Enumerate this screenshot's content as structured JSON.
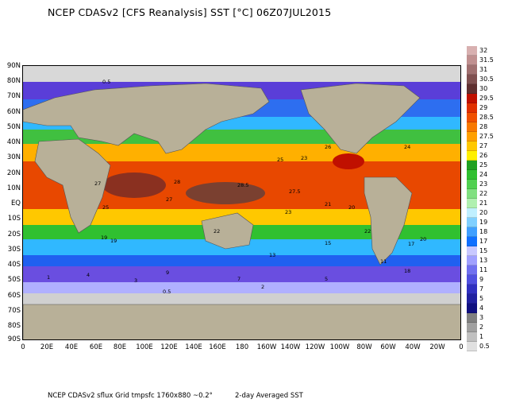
{
  "header": {
    "title": "NCEP CDASv2 [CFS Reanalysis] SST [°C] 06Z07JUL2015"
  },
  "axes": {
    "lat_labels": [
      "90N",
      "80N",
      "70N",
      "60N",
      "50N",
      "40N",
      "30N",
      "20N",
      "10N",
      "EQ",
      "10S",
      "20S",
      "30S",
      "40S",
      "50S",
      "60S",
      "70S",
      "80S",
      "90S"
    ],
    "lon_labels": [
      "0",
      "20E",
      "40E",
      "60E",
      "80E",
      "100E",
      "120E",
      "140E",
      "160E",
      "180",
      "160W",
      "140W",
      "120W",
      "100W",
      "80W",
      "60W",
      "40W",
      "20W",
      "0"
    ]
  },
  "colorbar": {
    "labels": [
      "32",
      "31.5",
      "31",
      "30.5",
      "30",
      "29.5",
      "29",
      "28.5",
      "28",
      "27.5",
      "27",
      "26",
      "25",
      "24",
      "23",
      "22",
      "21",
      "20",
      "19",
      "18",
      "17",
      "15",
      "13",
      "11",
      "9",
      "7",
      "5",
      "4",
      "3",
      "2",
      "1",
      "0.5"
    ],
    "colors": [
      "#d8b0b0",
      "#c09090",
      "#a07070",
      "#805050",
      "#603030",
      "#c01000",
      "#e03000",
      "#f05000",
      "#f87800",
      "#ffa000",
      "#ffc800",
      "#fff000",
      "#20a020",
      "#30c030",
      "#50d050",
      "#80e080",
      "#b0f0b0",
      "#c0f0ff",
      "#80d0ff",
      "#40a0ff",
      "#1070ff",
      "#c8c8ff",
      "#a0a0ff",
      "#7070f0",
      "#5050e0",
      "#3030c0",
      "#2020a0",
      "#101080",
      "#808080",
      "#a0a0a0",
      "#c0c0c0",
      "#e0e0e0"
    ]
  },
  "sst_labels": [
    "0.5",
    "25",
    "27",
    "26",
    "23",
    "24",
    "22",
    "21",
    "19",
    "20",
    "28.5",
    "28",
    "27.5",
    "27",
    "25",
    "23",
    "22",
    "20",
    "19",
    "18",
    "17",
    "15",
    "13",
    "11",
    "9",
    "7",
    "5",
    "4",
    "3",
    "2",
    "1",
    "0.5"
  ],
  "footer": {
    "source": "NCEP CDASv2 sflux Grid tmpsfc 1760x880 ~0.2°",
    "note": "2-day Averaged SST"
  }
}
